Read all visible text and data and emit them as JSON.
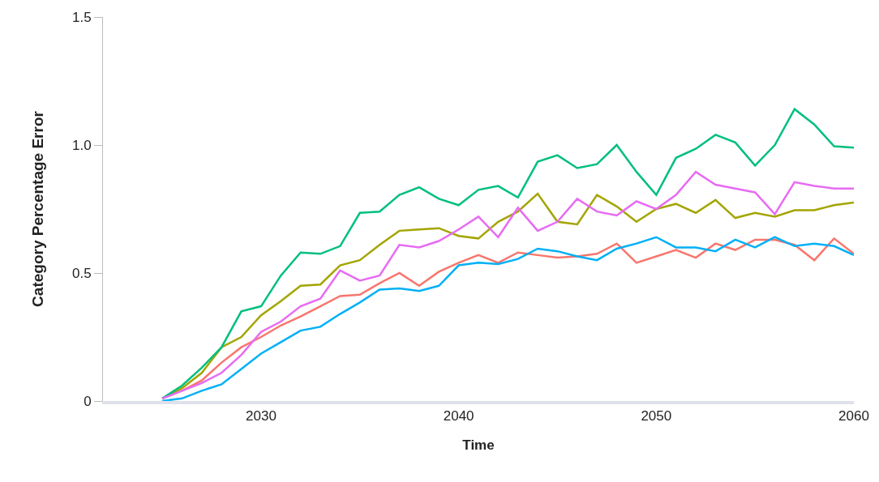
{
  "chart_data": {
    "type": "line",
    "xlabel": "Time",
    "ylabel": "Category Percentage Error",
    "x": [
      2025,
      2026,
      2027,
      2028,
      2029,
      2030,
      2031,
      2032,
      2033,
      2034,
      2035,
      2036,
      2037,
      2038,
      2039,
      2040,
      2041,
      2042,
      2043,
      2044,
      2045,
      2046,
      2047,
      2048,
      2049,
      2050,
      2051,
      2052,
      2053,
      2054,
      2055,
      2056,
      2057,
      2058,
      2059,
      2060
    ],
    "series": [
      {
        "color": "#f8766d",
        "values": [
          0.01,
          0.04,
          0.08,
          0.15,
          0.21,
          0.25,
          0.295,
          0.33,
          0.37,
          0.41,
          0.415,
          0.46,
          0.5,
          0.45,
          0.505,
          0.54,
          0.57,
          0.54,
          0.58,
          0.57,
          0.56,
          0.565,
          0.575,
          0.615,
          0.54,
          0.565,
          0.59,
          0.56,
          0.615,
          0.59,
          0.63,
          0.63,
          0.61,
          0.55,
          0.635,
          0.575
        ]
      },
      {
        "color": "#a3a500",
        "values": [
          0.01,
          0.05,
          0.11,
          0.21,
          0.25,
          0.335,
          0.39,
          0.45,
          0.455,
          0.53,
          0.55,
          0.61,
          0.665,
          0.67,
          0.675,
          0.645,
          0.635,
          0.7,
          0.74,
          0.81,
          0.7,
          0.69,
          0.805,
          0.76,
          0.7,
          0.75,
          0.77,
          0.735,
          0.785,
          0.715,
          0.735,
          0.72,
          0.745,
          0.745,
          0.765,
          0.775
        ]
      },
      {
        "color": "#00bf7d",
        "values": [
          0.01,
          0.06,
          0.13,
          0.21,
          0.35,
          0.37,
          0.49,
          0.58,
          0.575,
          0.605,
          0.735,
          0.74,
          0.805,
          0.835,
          0.79,
          0.765,
          0.825,
          0.84,
          0.795,
          0.935,
          0.96,
          0.91,
          0.925,
          1.0,
          0.895,
          0.805,
          0.95,
          0.985,
          1.04,
          1.01,
          0.92,
          1.0,
          1.14,
          1.08,
          0.995,
          0.99
        ]
      },
      {
        "color": "#00b0f6",
        "values": [
          0.0,
          0.01,
          0.04,
          0.065,
          0.125,
          0.185,
          0.23,
          0.275,
          0.29,
          0.34,
          0.385,
          0.435,
          0.44,
          0.43,
          0.45,
          0.53,
          0.54,
          0.535,
          0.555,
          0.595,
          0.585,
          0.565,
          0.55,
          0.595,
          0.615,
          0.64,
          0.6,
          0.6,
          0.585,
          0.63,
          0.6,
          0.64,
          0.605,
          0.615,
          0.605,
          0.57
        ]
      },
      {
        "color": "#e76bf3",
        "values": [
          0.01,
          0.04,
          0.07,
          0.11,
          0.18,
          0.27,
          0.31,
          0.37,
          0.4,
          0.51,
          0.47,
          0.49,
          0.61,
          0.6,
          0.625,
          0.67,
          0.72,
          0.64,
          0.755,
          0.665,
          0.7,
          0.79,
          0.74,
          0.725,
          0.78,
          0.75,
          0.805,
          0.895,
          0.845,
          0.83,
          0.815,
          0.73,
          0.855,
          0.84,
          0.83,
          0.83
        ]
      }
    ],
    "xlim": [
      2022,
      2060
    ],
    "xticks": [
      2030,
      2040,
      2050,
      2060
    ],
    "ylim": [
      0,
      1.5
    ],
    "yticks": [
      0,
      {
        "value": 0.5,
        "label": "0.5"
      },
      {
        "value": 1.0,
        "label": "1.0"
      },
      1.5
    ],
    "grid": false,
    "legend": false,
    "marker": "none",
    "line_style": "solid"
  }
}
